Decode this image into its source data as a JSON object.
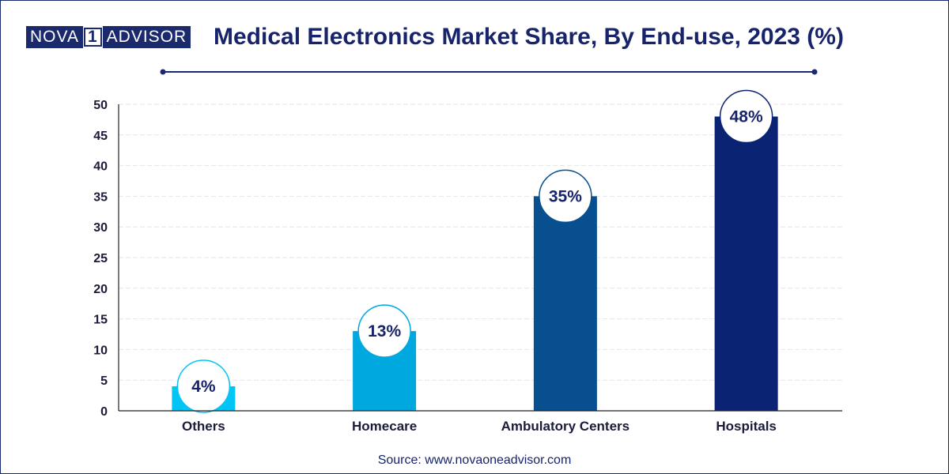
{
  "header": {
    "logo_left": "NOVA",
    "logo_digit": "1",
    "logo_right": "ADVISOR",
    "title": "Medical Electronics Market Share, By End-use, 2023 (%)"
  },
  "footer": {
    "source": "Source: www.novaoneadvisor.com"
  },
  "colors": {
    "title": "#17246b",
    "divider": "#1a2a6c",
    "bars": [
      "#00c5f5",
      "#00a8e0",
      "#074f8f",
      "#0b2373"
    ]
  },
  "chart_data": {
    "type": "bar",
    "title": "Medical Electronics Market Share, By End-use, 2023 (%)",
    "categories": [
      "Others",
      "Homecare",
      "Ambulatory Centers",
      "Hospitals"
    ],
    "values": [
      4,
      13,
      35,
      48
    ],
    "data_labels": [
      "4%",
      "13%",
      "35%",
      "48%"
    ],
    "ylim": [
      0,
      50
    ],
    "yticks": [
      0,
      5,
      10,
      15,
      20,
      25,
      30,
      35,
      40,
      45,
      50
    ],
    "grid": true,
    "xlabel": "",
    "ylabel": ""
  }
}
